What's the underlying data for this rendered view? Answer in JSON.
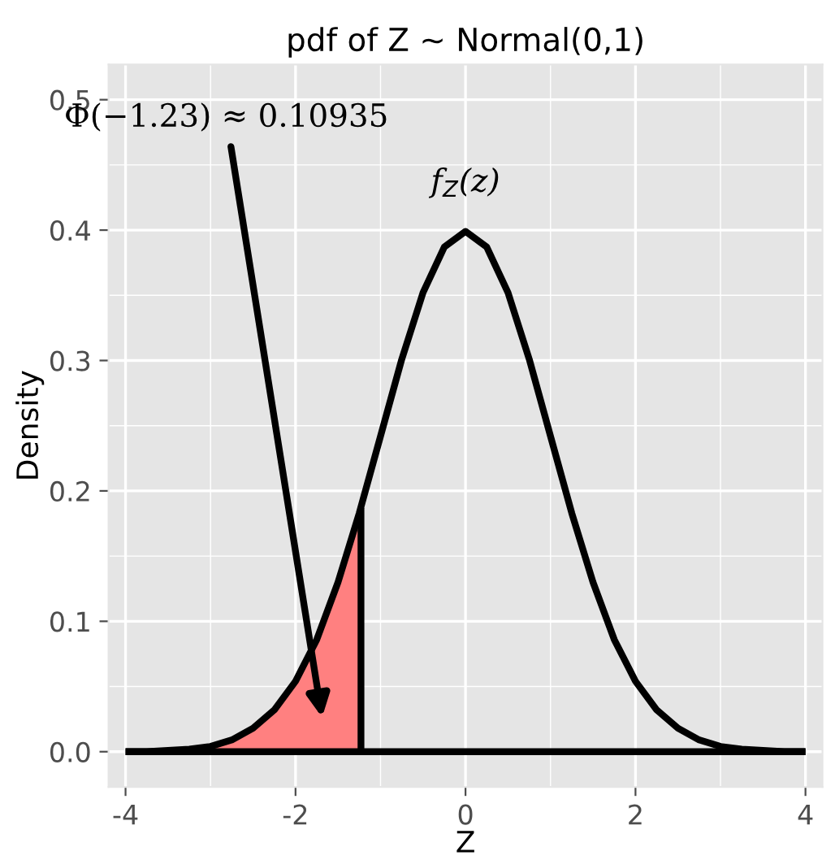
{
  "chart_data": {
    "type": "line",
    "title": "pdf of Z ~ Normal(0,1)",
    "xlabel": "Z",
    "ylabel": "Density",
    "series": [
      {
        "type": "area",
        "color": "#ff8080",
        "x": [
          -4,
          -3.75,
          -3.5,
          -3.25,
          -3,
          -2.75,
          -2.5,
          -2.25,
          -2,
          -1.75,
          -1.5,
          -1.25,
          -1.23
        ],
        "values": [
          0.0,
          0.0,
          0.001,
          0.002,
          0.004,
          0.009,
          0.018,
          0.032,
          0.054,
          0.086,
          0.13,
          0.183,
          0.187
        ]
      },
      {
        "color": "#000000",
        "x": [
          -4,
          4
        ],
        "values": [
          0,
          0
        ]
      },
      {
        "color": "#000000",
        "x": [
          -1.23,
          -1.23
        ],
        "values": [
          0,
          0.187
        ]
      },
      {
        "color": "#000000",
        "x": [
          -4,
          -3.75,
          -3.5,
          -3.25,
          -3,
          -2.75,
          -2.5,
          -2.25,
          -2,
          -1.75,
          -1.5,
          -1.25,
          -1,
          -0.75,
          -0.5,
          -0.25,
          0,
          0.25,
          0.5,
          0.75,
          1,
          1.25,
          1.5,
          1.75,
          2,
          2.25,
          2.5,
          2.75,
          3,
          3.25,
          3.5,
          3.75,
          4
        ],
        "values": [
          0.0,
          0.0,
          0.001,
          0.002,
          0.004,
          0.009,
          0.018,
          0.032,
          0.054,
          0.086,
          0.13,
          0.183,
          0.242,
          0.301,
          0.352,
          0.387,
          0.399,
          0.387,
          0.352,
          0.301,
          0.242,
          0.183,
          0.13,
          0.086,
          0.054,
          0.032,
          0.018,
          0.009,
          0.004,
          0.002,
          0.001,
          0.0,
          0.0
        ]
      }
    ],
    "annotations": [
      "Φ(−1.23) ≈ 0.10935",
      "f$_{Z}$(z)"
    ],
    "xlim": [
      -4.2,
      4.2
    ],
    "xticks": [
      -4,
      -2,
      0,
      2,
      4
    ],
    "ylim": [
      -0.027,
      0.527
    ],
    "yticks": [
      {
        "value": 0,
        "label": "0.0"
      },
      {
        "value": 0.1,
        "label": "0.1"
      },
      {
        "value": 0.2,
        "label": "0.2"
      },
      {
        "value": 0.3,
        "label": "0.3"
      },
      {
        "value": 0.4,
        "label": "0.4"
      },
      {
        "value": 0.5,
        "label": "0.5"
      }
    ],
    "grid": true,
    "legend": false,
    "marker": "none",
    "line_style": "solid"
  }
}
